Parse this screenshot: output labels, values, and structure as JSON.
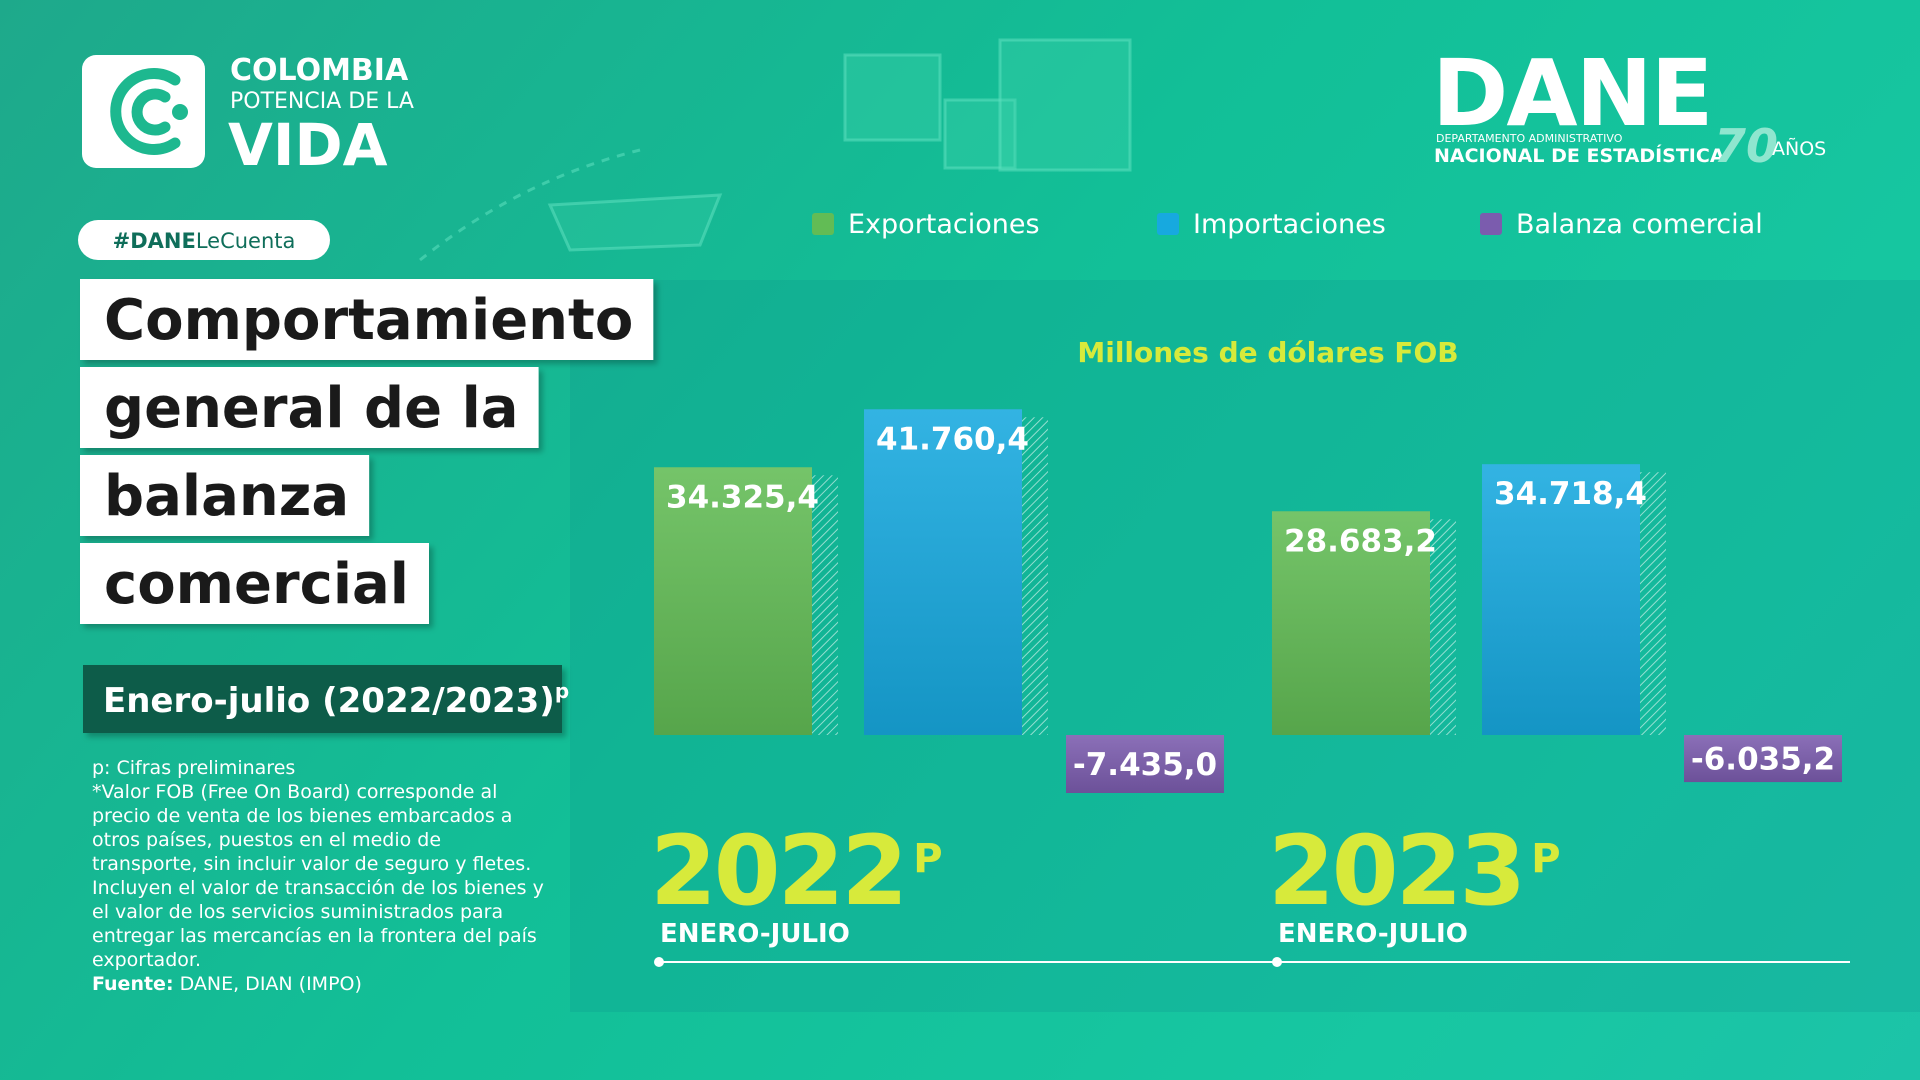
{
  "brand": {
    "country": "COLOMBIA",
    "tagline": "POTENCIA DE LA",
    "word": "VIDA"
  },
  "agency": {
    "acronym": "DANE",
    "line1": "DEPARTAMENTO ADMINISTRATIVO",
    "line2": "NACIONAL DE ESTADÍSTICA",
    "anniversary": "70",
    "anniversary_word": "AÑOS"
  },
  "hashtag": [
    "#DANE",
    "LeCuenta"
  ],
  "heading": {
    "lines": [
      "Comportamiento",
      "general de la",
      "balanza",
      "comercial"
    ]
  },
  "period": {
    "text": "Enero-julio (2022/2023)",
    "superscript": "p"
  },
  "notes": {
    "preliminary": "p: Cifras preliminares",
    "fob": "*Valor FOB (Free On Board) corresponde al precio de venta de los bienes embarcados a otros países, puestos en el medio de transporte, sin incluir valor de seguro y fletes. Incluyen el valor de transacción de los bienes y el valor de los servicios suministrados para entregar las mercancías en la frontera del país exportador.",
    "source_label": "Fuente:",
    "source": "DANE, DIAN (IMPO)"
  },
  "chart_data": {
    "type": "bar",
    "y_label": "Millones de dólares FOB",
    "categories": [
      "2022",
      "2023"
    ],
    "category_superscripts": [
      "P",
      "P"
    ],
    "category_sublabels": [
      "ENERO-JULIO",
      "ENERO-JULIO"
    ],
    "series": [
      {
        "name": "Exportaciones",
        "color": "#62bc55",
        "values": [
          34325.4,
          28683.2
        ],
        "value_labels": [
          "34.325,4",
          "28.683,2"
        ]
      },
      {
        "name": "Importaciones",
        "color": "#17a9df",
        "values": [
          41760.4,
          34718.4
        ],
        "value_labels": [
          "41.760,4",
          "34.718,4"
        ]
      },
      {
        "name": "Balanza comercial",
        "color": "#7b5cae",
        "values": [
          -7435.0,
          -6035.2
        ],
        "value_labels": [
          "-7.435,0",
          "-6.035,2"
        ]
      }
    ]
  }
}
